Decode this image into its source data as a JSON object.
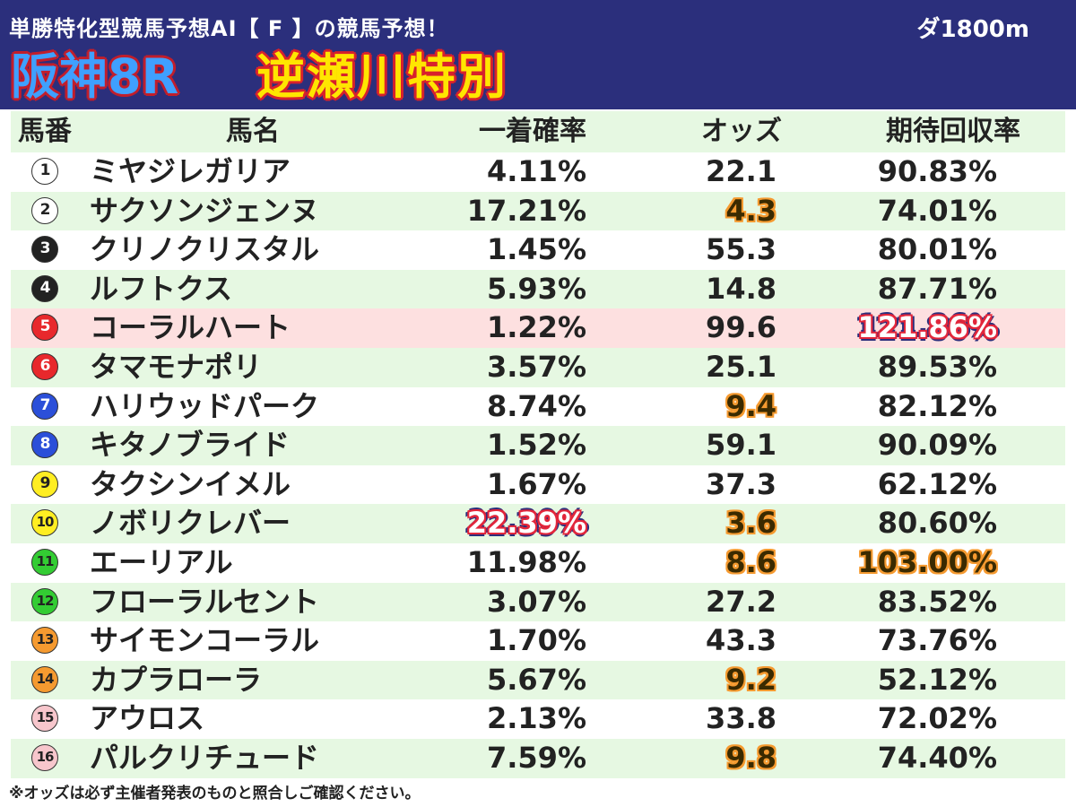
{
  "header": {
    "subtitle": "単勝特化型競馬予想AI【 F 】の競馬予想！",
    "distance": "ダ1800m",
    "race_no": "阪神8R",
    "race_name": "逆瀬川特別"
  },
  "columns": {
    "num": "馬番",
    "name": "馬名",
    "prob": "一着確率",
    "odds": "オッズ",
    "ev": "期待回収率"
  },
  "colors": {
    "header_bg": "#2b2f7c",
    "row_alt": "#e6f8e2",
    "row_highlight": "#fde0e0",
    "orange_highlight": "#f59a30",
    "red_highlight": "#e2263b"
  },
  "rows": [
    {
      "num": "1",
      "name": "ミヤジレガリア",
      "prob": "4.11%",
      "odds": "22.1",
      "ev": "90.83%",
      "badge_bg": "#ffffff",
      "badge_fg": "#222222"
    },
    {
      "num": "2",
      "name": "サクソンジェンヌ",
      "prob": "17.21%",
      "odds": "4.3",
      "ev": "74.01%",
      "badge_bg": "#ffffff",
      "badge_fg": "#222222",
      "odds_hl": "orange"
    },
    {
      "num": "3",
      "name": "クリノクリスタル",
      "prob": "1.45%",
      "odds": "55.3",
      "ev": "80.01%",
      "badge_bg": "#222222",
      "badge_fg": "#ffffff"
    },
    {
      "num": "4",
      "name": "ルフトクス",
      "prob": "5.93%",
      "odds": "14.8",
      "ev": "87.71%",
      "badge_bg": "#222222",
      "badge_fg": "#ffffff"
    },
    {
      "num": "5",
      "name": "コーラルハート",
      "prob": "1.22%",
      "odds": "99.6",
      "ev": "121.86%",
      "badge_bg": "#e8282c",
      "badge_fg": "#ffffff",
      "ev_hl": "red",
      "row_hl": true
    },
    {
      "num": "6",
      "name": "タマモナポリ",
      "prob": "3.57%",
      "odds": "25.1",
      "ev": "89.53%",
      "badge_bg": "#e8282c",
      "badge_fg": "#ffffff"
    },
    {
      "num": "7",
      "name": "ハリウッドパーク",
      "prob": "8.74%",
      "odds": "9.4",
      "ev": "82.12%",
      "badge_bg": "#2b4fd9",
      "badge_fg": "#ffffff",
      "odds_hl": "orange"
    },
    {
      "num": "8",
      "name": "キタノブライド",
      "prob": "1.52%",
      "odds": "59.1",
      "ev": "90.09%",
      "badge_bg": "#2b4fd9",
      "badge_fg": "#ffffff"
    },
    {
      "num": "9",
      "name": "タクシンイメル",
      "prob": "1.67%",
      "odds": "37.3",
      "ev": "62.12%",
      "badge_bg": "#ffee22",
      "badge_fg": "#222222"
    },
    {
      "num": "10",
      "name": "ノボリクレバー",
      "prob": "22.39%",
      "odds": "3.6",
      "ev": "80.60%",
      "badge_bg": "#ffee22",
      "badge_fg": "#222222",
      "prob_hl": "red",
      "odds_hl": "orange"
    },
    {
      "num": "11",
      "name": "エーリアル",
      "prob": "11.98%",
      "odds": "8.6",
      "ev": "103.00%",
      "badge_bg": "#33cc33",
      "badge_fg": "#222222",
      "odds_hl": "orange",
      "ev_hl": "orange"
    },
    {
      "num": "12",
      "name": "フローラルセント",
      "prob": "3.07%",
      "odds": "27.2",
      "ev": "83.52%",
      "badge_bg": "#33cc33",
      "badge_fg": "#222222"
    },
    {
      "num": "13",
      "name": "サイモンコーラル",
      "prob": "1.70%",
      "odds": "43.3",
      "ev": "73.76%",
      "badge_bg": "#f59a30",
      "badge_fg": "#222222"
    },
    {
      "num": "14",
      "name": "カプラローラ",
      "prob": "5.67%",
      "odds": "9.2",
      "ev": "52.12%",
      "badge_bg": "#f59a30",
      "badge_fg": "#222222",
      "odds_hl": "orange"
    },
    {
      "num": "15",
      "name": "アウロス",
      "prob": "2.13%",
      "odds": "33.8",
      "ev": "72.02%",
      "badge_bg": "#f7c6cc",
      "badge_fg": "#222222"
    },
    {
      "num": "16",
      "name": "パルクリチュード",
      "prob": "7.59%",
      "odds": "9.8",
      "ev": "74.40%",
      "badge_bg": "#f7c6cc",
      "badge_fg": "#222222",
      "odds_hl": "orange"
    }
  ],
  "footnote": "※オッズは必ず主催者発表のものと照合しご確認ください。"
}
